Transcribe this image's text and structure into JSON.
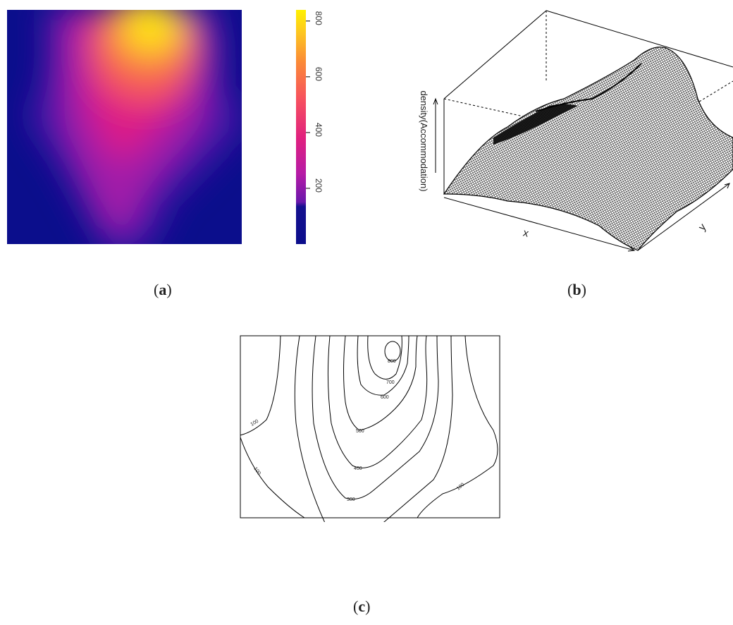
{
  "captions": {
    "a": "a",
    "b": "b",
    "c": "c"
  },
  "chart_data": [
    {
      "panel": "a",
      "type": "heatmap",
      "colorbar_ticks": [
        200,
        400,
        600,
        800
      ],
      "colorbar_range": [
        0,
        840
      ],
      "palette": [
        "#0b0e8c",
        "#3a11a4",
        "#8c1fb0",
        "#d11c95",
        "#f53e6a",
        "#fb7e3c",
        "#fdb928",
        "#fff100"
      ],
      "peak": {
        "value": 820
      },
      "axes": "none"
    },
    {
      "panel": "b",
      "type": "surface",
      "xlabel": "x",
      "ylabel": "y",
      "zlabel": "density(Accommodation)",
      "wireframe_color": "#000000"
    },
    {
      "panel": "c",
      "type": "contour",
      "levels": [
        100,
        200,
        300,
        400,
        500,
        600,
        700,
        800
      ],
      "labels": {
        "l100a": "100",
        "l100b": "100",
        "l100c": "100",
        "l200": "200",
        "l300": "300",
        "l400": "400",
        "l500": "500",
        "l600": "600",
        "l700": "700",
        "l800": "800"
      }
    }
  ]
}
